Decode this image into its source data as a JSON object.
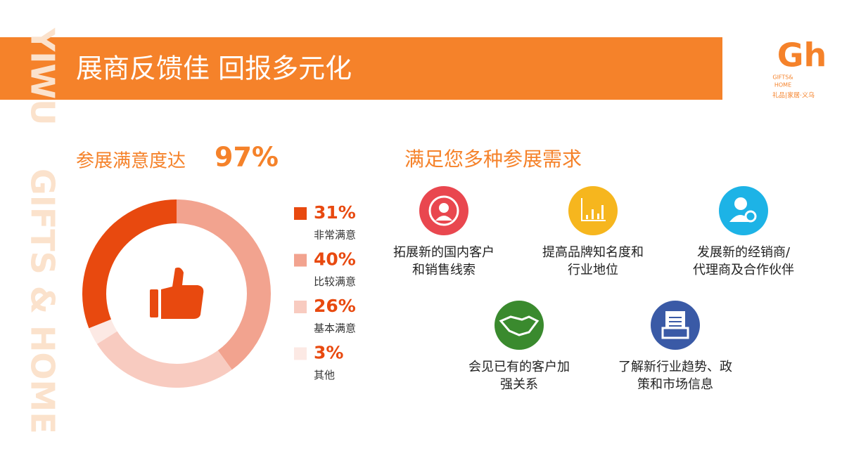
{
  "header": {
    "title": "展商反馈佳  回报多元化"
  },
  "side_text": [
    "YIWU",
    "GIFTS & HOME"
  ],
  "logo": {
    "mark": "Gh",
    "lines": [
      "GIFTS&",
      "HOME"
    ],
    "tagline": "礼品|家居·义乌"
  },
  "chart_data": {
    "type": "donut",
    "title": "参展满意度达",
    "highlight": "97%",
    "categories": [
      "非常满意",
      "比较满意",
      "基本满意",
      "其他"
    ],
    "values": [
      31,
      40,
      26,
      3
    ],
    "value_labels": [
      "31%",
      "40%",
      "26%",
      "3%"
    ],
    "colors": [
      "#e8490f",
      "#f2a38f",
      "#f8cbc0",
      "#fce9e4"
    ]
  },
  "needs": {
    "title": "满足您多种参展需求",
    "items": [
      {
        "lines": [
          "拓展新的国内客户",
          "和销售线索"
        ],
        "color": "#e9474f"
      },
      {
        "lines": [
          "提高品牌知名度和",
          "行业地位"
        ],
        "color": "#f6b61e"
      },
      {
        "lines": [
          "发展新的经销商/",
          "代理商及合作伙伴"
        ],
        "color": "#1db3e6"
      },
      {
        "lines": [
          "会见已有的客户加",
          "强关系"
        ],
        "color": "#3a8a2e"
      },
      {
        "lines": [
          "了解新行业趋势、政",
          "策和市场信息"
        ],
        "color": "#3a5aa6"
      }
    ]
  }
}
